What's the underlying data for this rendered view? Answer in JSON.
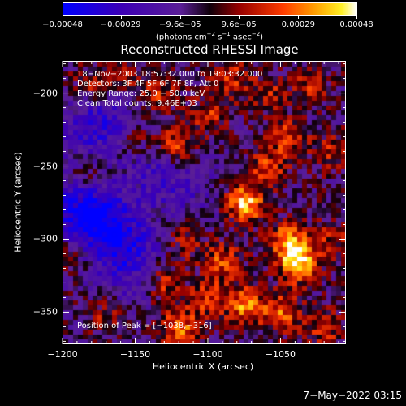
{
  "chart_data": {
    "type": "heatmap",
    "title": "Reconstructed RHESSI Image",
    "xlabel": "Heliocentric X (arcsec)",
    "ylabel": "Heliocentric Y (arcsec)",
    "xlim": [
      -1200,
      -1005
    ],
    "ylim": [
      -372,
      -178
    ],
    "x_ticks": [
      -1200,
      -1150,
      -1100,
      -1050
    ],
    "x_tick_labels": [
      "−1200",
      "−1150",
      "−1100",
      "−1050"
    ],
    "y_ticks": [
      -200,
      -250,
      -300,
      -350
    ],
    "y_tick_labels": [
      "−200",
      "−250",
      "−300",
      "−350"
    ],
    "colorbar": {
      "range": [
        -0.00048,
        0.00048
      ],
      "ticks": [
        -0.00048,
        -0.00029,
        -9.6e-05,
        9.6e-05,
        0.00029,
        0.00048
      ],
      "tick_labels": [
        "−0.00048",
        "−0.00029",
        "−9.6e−05",
        "9.6e−05",
        "0.00029",
        "0.00048"
      ],
      "units_prefix": "(photons cm",
      "units_exp1": "−2",
      "units_mid1": " s",
      "units_exp2": "−1",
      "units_mid2": " asec",
      "units_exp3": "−2",
      "units_suffix": ")"
    },
    "annotations": {
      "time": "18−Nov−2003 18:57:32.000 to 19:03:32.000",
      "detectors": "Detectors: 3F 4F 5F 6F 7F 8F, Att 0",
      "energy": "Energy Range: 25.0 − 50.0 keV",
      "clean": "Clean      Total counts: 9.46E+03",
      "peak": "Position of Peak = [−1038,−316]"
    },
    "peak": {
      "x": -1038,
      "y": -316
    },
    "hot_spots": [
      {
        "x": -1180,
        "y": -195,
        "v": 0.0002
      },
      {
        "x": -1158,
        "y": -190,
        "v": 0.00018
      },
      {
        "x": -1135,
        "y": -200,
        "v": 0.00022
      },
      {
        "x": -1123,
        "y": -235,
        "v": 0.0003
      },
      {
        "x": -1185,
        "y": -255,
        "v": 0.00016
      },
      {
        "x": -1150,
        "y": -230,
        "v": 0.00015
      },
      {
        "x": -1100,
        "y": -215,
        "v": 0.0002
      },
      {
        "x": -1085,
        "y": -190,
        "v": 0.00022
      },
      {
        "x": -1060,
        "y": -200,
        "v": 0.00018
      },
      {
        "x": -1030,
        "y": -195,
        "v": 0.00018
      },
      {
        "x": -1045,
        "y": -230,
        "v": 0.00026
      },
      {
        "x": -1015,
        "y": -240,
        "v": 0.00018
      },
      {
        "x": -1075,
        "y": -275,
        "v": 0.00045
      },
      {
        "x": -1060,
        "y": -250,
        "v": 0.00024
      },
      {
        "x": -1038,
        "y": -316,
        "v": 0.00048
      },
      {
        "x": -1045,
        "y": -300,
        "v": 0.00035
      },
      {
        "x": -1090,
        "y": -315,
        "v": 0.00026
      },
      {
        "x": -1115,
        "y": -300,
        "v": 0.00018
      },
      {
        "x": -1130,
        "y": -330,
        "v": 0.00022
      },
      {
        "x": -1100,
        "y": -340,
        "v": 0.00024
      },
      {
        "x": -1075,
        "y": -345,
        "v": 0.00036
      },
      {
        "x": -1050,
        "y": -350,
        "v": 0.0003
      },
      {
        "x": -1120,
        "y": -360,
        "v": 0.00032
      },
      {
        "x": -1170,
        "y": -350,
        "v": 0.00018
      },
      {
        "x": -1195,
        "y": -310,
        "v": 0.00014
      },
      {
        "x": -1020,
        "y": -360,
        "v": 0.00022
      },
      {
        "x": -1015,
        "y": -300,
        "v": 0.00016
      }
    ],
    "cold_spots": [
      {
        "x": -1175,
        "y": -290,
        "v": -0.0003
      },
      {
        "x": -1190,
        "y": -275,
        "v": -0.00025
      },
      {
        "x": -1155,
        "y": -305,
        "v": -0.00022
      },
      {
        "x": -1135,
        "y": -255,
        "v": -0.00018
      },
      {
        "x": -1165,
        "y": -215,
        "v": -0.00016
      },
      {
        "x": -1185,
        "y": -225,
        "v": -0.00018
      },
      {
        "x": -1110,
        "y": -270,
        "v": -0.0001
      },
      {
        "x": -1160,
        "y": -330,
        "v": -0.00012
      }
    ]
  },
  "datestamp": "7−May−2022 03:15"
}
